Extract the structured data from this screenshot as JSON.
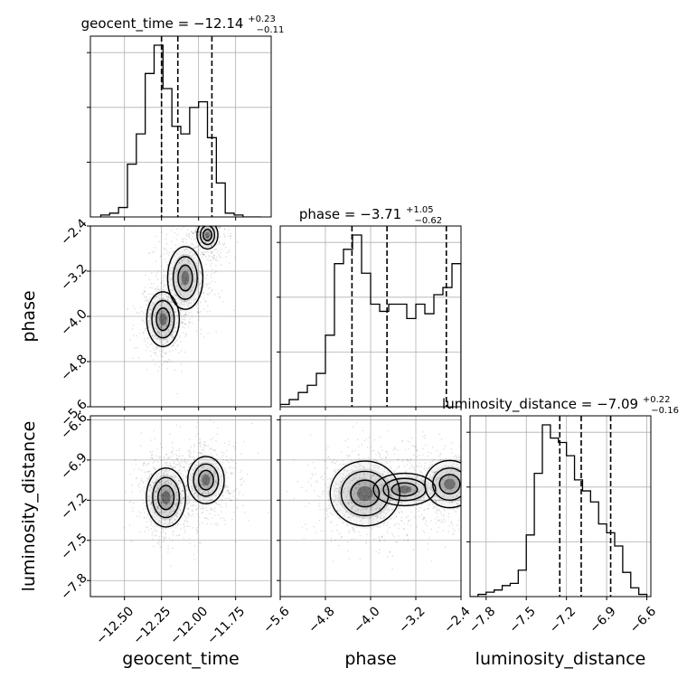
{
  "chart_data": {
    "type": "corner",
    "parameters": [
      "geocent_time",
      "phase",
      "luminosity_distance"
    ],
    "titles": [
      {
        "label": "geocent_time = −12.14",
        "plus": "+0.23",
        "minus": "−0.11"
      },
      {
        "label": "phase = −3.71",
        "plus": "+1.05",
        "minus": "−0.62"
      },
      {
        "label": "luminosity_distance = −7.09",
        "plus": "+0.22",
        "minus": "−0.16"
      }
    ],
    "ranges": {
      "geocent_time": [
        -12.73,
        -11.51
      ],
      "phase": [
        -5.6,
        -2.4
      ],
      "luminosity_distance": [
        -7.92,
        -6.57
      ]
    },
    "ticks": {
      "geocent_time": {
        "values": [
          -12.5,
          -12.25,
          -12.0,
          -11.75
        ],
        "labels": [
          "−12.50",
          "−12.25",
          "−12.00",
          "−11.75"
        ]
      },
      "phase": {
        "values": [
          -5.6,
          -4.8,
          -4.0,
          -3.2,
          -2.4
        ],
        "labels": [
          "−5.6",
          "−4.8",
          "−4.0",
          "−3.2",
          "−2.4"
        ]
      },
      "luminosity_distance": {
        "values": [
          -7.8,
          -7.5,
          -7.2,
          -6.9,
          -6.6
        ],
        "labels": [
          "−7.8",
          "−7.5",
          "−7.2",
          "−6.9",
          "−6.6"
        ]
      }
    },
    "quantiles": {
      "geocent_time": [
        -12.25,
        -12.14,
        -11.91
      ],
      "phase": [
        -4.33,
        -3.71,
        -2.66
      ],
      "luminosity_distance": [
        -7.25,
        -7.09,
        -6.87
      ]
    },
    "histograms": {
      "geocent_time": {
        "bin_edges": [
          -12.66,
          -12.6,
          -12.54,
          -12.48,
          -12.42,
          -12.36,
          -12.3,
          -12.24,
          -12.18,
          -12.12,
          -12.06,
          -12.0,
          -11.94,
          -11.88,
          -11.82,
          -11.76,
          -11.7,
          -11.64,
          -11.58
        ],
        "counts": [
          0.01,
          0.02,
          0.05,
          0.28,
          0.44,
          0.76,
          0.91,
          0.68,
          0.48,
          0.44,
          0.58,
          0.61,
          0.42,
          0.18,
          0.02,
          0.01,
          0.0,
          0.0
        ]
      },
      "phase": {
        "bin_edges": [
          -5.6,
          -5.44,
          -5.28,
          -5.12,
          -4.96,
          -4.8,
          -4.64,
          -4.48,
          -4.32,
          -4.16,
          -4.0,
          -3.84,
          -3.68,
          -3.52,
          -3.36,
          -3.2,
          -3.04,
          -2.88,
          -2.72,
          -2.56,
          -2.4
        ],
        "counts": [
          0.01,
          0.03,
          0.06,
          0.09,
          0.14,
          0.3,
          0.6,
          0.66,
          0.72,
          0.56,
          0.43,
          0.4,
          0.43,
          0.43,
          0.37,
          0.43,
          0.39,
          0.47,
          0.5,
          0.6
        ]
      },
      "luminosity_distance": {
        "bin_edges": [
          -7.92,
          -7.86,
          -7.8,
          -7.74,
          -7.68,
          -7.62,
          -7.56,
          -7.5,
          -7.44,
          -7.38,
          -7.32,
          -7.26,
          -7.2,
          -7.14,
          -7.08,
          -7.02,
          -6.96,
          -6.9,
          -6.84,
          -6.78,
          -6.72,
          -6.66,
          -6.6
        ],
        "counts": [
          0.0,
          0.01,
          0.02,
          0.03,
          0.05,
          0.06,
          0.12,
          0.28,
          0.56,
          0.78,
          0.72,
          0.7,
          0.64,
          0.53,
          0.48,
          0.43,
          0.33,
          0.29,
          0.23,
          0.11,
          0.04,
          0.01
        ]
      }
    },
    "joint_panels": [
      {
        "x": "geocent_time",
        "y": "phase",
        "modes": [
          {
            "x": -12.24,
            "y": -4.05,
            "sx": 0.05,
            "sy": 0.22,
            "w": 1.0
          },
          {
            "x": -12.09,
            "y": -3.32,
            "sx": 0.06,
            "sy": 0.28,
            "w": 0.9
          },
          {
            "x": -11.94,
            "y": -2.56,
            "sx": 0.04,
            "sy": 0.14,
            "w": 0.8
          }
        ]
      },
      {
        "x": "geocent_time",
        "y": "luminosity_distance",
        "modes": [
          {
            "x": -12.22,
            "y": -7.18,
            "sx": 0.06,
            "sy": 0.1,
            "w": 1.0
          },
          {
            "x": -11.95,
            "y": -7.05,
            "sx": 0.07,
            "sy": 0.1,
            "w": 0.8
          }
        ]
      },
      {
        "x": "phase",
        "y": "luminosity_distance",
        "modes": [
          {
            "x": -4.1,
            "y": -7.15,
            "sx": 0.28,
            "sy": 0.11,
            "w": 1.0
          },
          {
            "x": -2.6,
            "y": -7.08,
            "sx": 0.25,
            "sy": 0.1,
            "w": 0.8
          },
          {
            "x": -3.4,
            "y": -7.12,
            "sx": 0.5,
            "sy": 0.11,
            "w": 0.5
          }
        ]
      }
    ],
    "grid": true,
    "colors": {
      "line": "#000000",
      "grid": "#b0b0b0",
      "points": "#000000",
      "fill": "#000000"
    }
  }
}
